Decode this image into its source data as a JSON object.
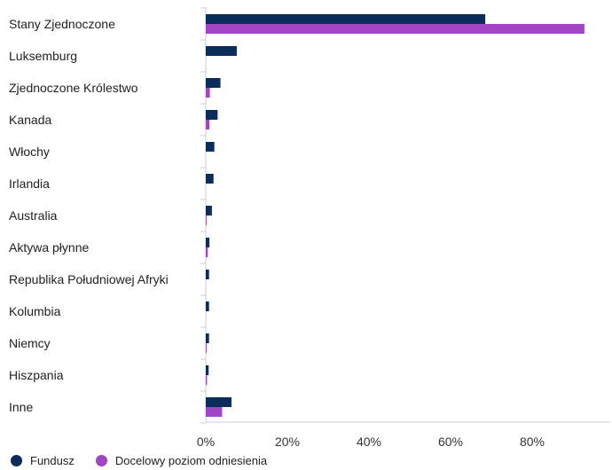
{
  "chart_data": {
    "type": "bar",
    "orientation": "horizontal",
    "categories": [
      "Stany Zjednoczone",
      "Luksemburg",
      "Zjednoczone Królestwo",
      "Kanada",
      "Włochy",
      "Irlandia",
      "Australia",
      "Aktywa płynne",
      "Republika Południowej Afryki",
      "Kolumbia",
      "Niemcy",
      "Hiszpania",
      "Inne"
    ],
    "series": [
      {
        "name": "Fundusz",
        "color": "#0b2d5b",
        "values": [
          68.5,
          7.6,
          3.6,
          2.9,
          2.1,
          1.9,
          1.5,
          0.9,
          0.8,
          0.8,
          0.8,
          0.7,
          6.3
        ]
      },
      {
        "name": "Docelowy poziom odniesienia",
        "color": "#a245c4",
        "values": [
          92.8,
          0.0,
          1.0,
          0.9,
          0.0,
          0.0,
          0.2,
          0.5,
          0.0,
          0.0,
          0.2,
          0.3,
          4.0
        ]
      }
    ],
    "xlim": [
      0,
      100
    ],
    "xticks": [
      0,
      20,
      40,
      60,
      80
    ],
    "tick_format": "%",
    "xlabel": "",
    "ylabel": "",
    "grid": false,
    "legend": "bottom-left"
  },
  "legend": {
    "items": [
      {
        "label": "Fundusz",
        "color": "#0b2d5b"
      },
      {
        "label": "Docelowy poziom odniesienia",
        "color": "#a245c4"
      }
    ]
  }
}
